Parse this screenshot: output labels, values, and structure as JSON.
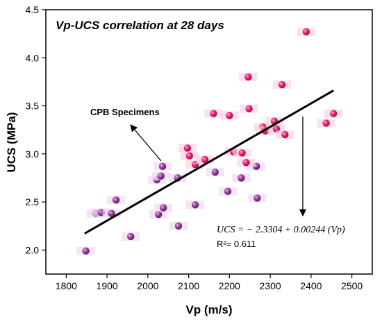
{
  "chart_data": {
    "type": "scatter",
    "title": "Vp-UCS correlation at 28 days",
    "xlabel": "Vp (m/s)",
    "ylabel": "UCS (MPa)",
    "xlim": [
      1750,
      2550
    ],
    "ylim": [
      1.75,
      4.5
    ],
    "xticks": [
      1800,
      1900,
      2000,
      2100,
      2200,
      2300,
      2400,
      2500
    ],
    "yticks": [
      2.0,
      2.5,
      3.0,
      3.5,
      4.0,
      4.5
    ],
    "xtick_labels": [
      "1800",
      "1900",
      "2000",
      "2100",
      "2200",
      "2300",
      "2400",
      "2500"
    ],
    "ytick_labels": [
      "2.0",
      "2.5",
      "3.0",
      "3.5",
      "4.0",
      "4.5"
    ],
    "grid": false,
    "series": [
      {
        "name": "",
        "color_purple": "#8b3a8e",
        "color_pink": "#e8136f",
        "points": [
          {
            "x": 1848,
            "y": 1.99,
            "c": "purple"
          },
          {
            "x": 1872,
            "y": 2.38,
            "c": "purple"
          },
          {
            "x": 1886,
            "y": 2.39,
            "c": "purple"
          },
          {
            "x": 1911,
            "y": 2.38,
            "c": "purple"
          },
          {
            "x": 1922,
            "y": 2.52,
            "c": "purple"
          },
          {
            "x": 1958,
            "y": 2.14,
            "c": "purple"
          },
          {
            "x": 2022,
            "y": 2.73,
            "c": "purple"
          },
          {
            "x": 2026,
            "y": 2.37,
            "c": "purple"
          },
          {
            "x": 2032,
            "y": 2.77,
            "c": "purple"
          },
          {
            "x": 2036,
            "y": 2.87,
            "c": "purple"
          },
          {
            "x": 2038,
            "y": 2.44,
            "c": "purple"
          },
          {
            "x": 2073,
            "y": 2.75,
            "c": "purple"
          },
          {
            "x": 2075,
            "y": 2.25,
            "c": "purple"
          },
          {
            "x": 2116,
            "y": 2.47,
            "c": "purple"
          },
          {
            "x": 2165,
            "y": 2.81,
            "c": "purple"
          },
          {
            "x": 2196,
            "y": 2.61,
            "c": "purple"
          },
          {
            "x": 2229,
            "y": 2.75,
            "c": "purple"
          },
          {
            "x": 2266,
            "y": 2.87,
            "c": "purple"
          },
          {
            "x": 2268,
            "y": 2.54,
            "c": "purple"
          },
          {
            "x": 2097,
            "y": 3.06,
            "c": "pink"
          },
          {
            "x": 2102,
            "y": 2.98,
            "c": "pink"
          },
          {
            "x": 2116,
            "y": 2.89,
            "c": "pink"
          },
          {
            "x": 2140,
            "y": 2.94,
            "c": "pink"
          },
          {
            "x": 2161,
            "y": 3.42,
            "c": "pink"
          },
          {
            "x": 2200,
            "y": 3.4,
            "c": "pink"
          },
          {
            "x": 2210,
            "y": 3.02,
            "c": "pink"
          },
          {
            "x": 2231,
            "y": 3.01,
            "c": "pink"
          },
          {
            "x": 2241,
            "y": 2.91,
            "c": "pink"
          },
          {
            "x": 2246,
            "y": 3.8,
            "c": "pink"
          },
          {
            "x": 2248,
            "y": 3.47,
            "c": "pink"
          },
          {
            "x": 2282,
            "y": 3.28,
            "c": "pink"
          },
          {
            "x": 2288,
            "y": 3.24,
            "c": "pink"
          },
          {
            "x": 2310,
            "y": 3.34,
            "c": "pink"
          },
          {
            "x": 2315,
            "y": 3.26,
            "c": "pink"
          },
          {
            "x": 2329,
            "y": 3.72,
            "c": "pink"
          },
          {
            "x": 2336,
            "y": 3.2,
            "c": "pink"
          },
          {
            "x": 2388,
            "y": 4.27,
            "c": "pink"
          },
          {
            "x": 2437,
            "y": 3.32,
            "c": "pink"
          },
          {
            "x": 2455,
            "y": 3.42,
            "c": "pink"
          }
        ]
      }
    ],
    "fit_line": {
      "x": [
        1845,
        2455
      ],
      "intercept": -2.3304,
      "slope": 0.00244
    },
    "annotations": {
      "specimens_label": "CPB Specimens",
      "equation": "UCS = − 2.3304 + 0.00244 (Vp)",
      "r2": "R²= 0.611"
    }
  }
}
